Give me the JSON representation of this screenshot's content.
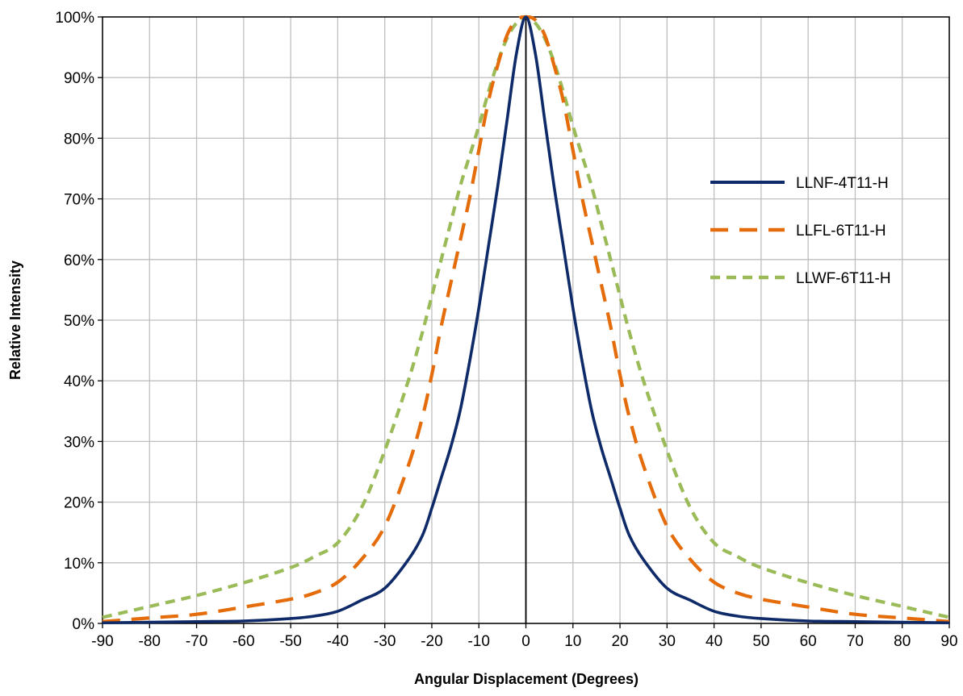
{
  "chart_data": {
    "type": "line",
    "xlabel": "Angular Displacement (Degrees)",
    "ylabel": "Relative Intensity",
    "xlim": [
      -90,
      90
    ],
    "ylim": [
      0,
      100
    ],
    "x_ticks": [
      "-90",
      "-80",
      "-70",
      "-60",
      "-50",
      "-40",
      "-30",
      "-20",
      "-10",
      "0",
      "10",
      "20",
      "30",
      "40",
      "50",
      "60",
      "70",
      "80",
      "90"
    ],
    "y_ticks": [
      "0%",
      "10%",
      "20%",
      "30%",
      "40%",
      "50%",
      "60%",
      "70%",
      "80%",
      "90%",
      "100%"
    ],
    "grid": true,
    "legend_position": "right",
    "x": [
      -90,
      -80,
      -70,
      -60,
      -50,
      -45,
      -40,
      -35,
      -30,
      -25,
      -22,
      -20,
      -18,
      -16,
      -14,
      -12,
      -10,
      -8,
      -6,
      -4,
      -2,
      0,
      2,
      4,
      6,
      8,
      10,
      12,
      14,
      16,
      18,
      20,
      22,
      25,
      30,
      35,
      40,
      45,
      50,
      60,
      70,
      80,
      90
    ],
    "series": [
      {
        "name": "LLNF-4T11-H",
        "color": "#0e2a68",
        "dash": "solid",
        "values": [
          0.1,
          0.2,
          0.3,
          0.4,
          0.8,
          1.2,
          2.0,
          3.8,
          5.8,
          10.5,
          14.5,
          19.0,
          24.0,
          29.0,
          35.0,
          43.0,
          52.0,
          62.0,
          72.0,
          83.0,
          94.0,
          100,
          94.0,
          83.0,
          72.0,
          62.0,
          52.0,
          43.0,
          35.0,
          29.0,
          24.0,
          19.0,
          14.5,
          10.5,
          5.8,
          3.8,
          2.0,
          1.2,
          0.8,
          0.4,
          0.3,
          0.2,
          0.1
        ]
      },
      {
        "name": "LLFL-6T11-H",
        "color": "#e46c0a",
        "dash": "long-dash",
        "values": [
          0.3,
          0.9,
          1.5,
          2.7,
          4.0,
          5.0,
          6.8,
          10.5,
          16.0,
          26.0,
          34.0,
          41.0,
          49.0,
          56.0,
          63.0,
          70.0,
          78.0,
          86.0,
          92.0,
          97.0,
          99.5,
          100,
          99.5,
          97.0,
          92.0,
          86.0,
          78.0,
          70.0,
          63.0,
          56.0,
          49.0,
          41.0,
          34.0,
          26.0,
          16.0,
          10.5,
          6.8,
          5.0,
          4.0,
          2.7,
          1.5,
          0.9,
          0.3
        ]
      },
      {
        "name": "LLWF-6T11-H",
        "color": "#9bbb59",
        "dash": "short-dash",
        "values": [
          1.0,
          2.8,
          4.6,
          6.7,
          9.2,
          11.0,
          13.3,
          19.0,
          28.5,
          40.0,
          48.0,
          54.0,
          60.0,
          66.0,
          72.0,
          77.0,
          82.0,
          87.5,
          92.5,
          96.5,
          99.0,
          100,
          99.0,
          96.5,
          92.5,
          87.5,
          82.0,
          77.0,
          72.0,
          66.0,
          60.0,
          54.0,
          48.0,
          40.0,
          28.5,
          19.0,
          13.3,
          11.0,
          9.2,
          6.7,
          4.6,
          2.8,
          1.0
        ]
      }
    ]
  }
}
